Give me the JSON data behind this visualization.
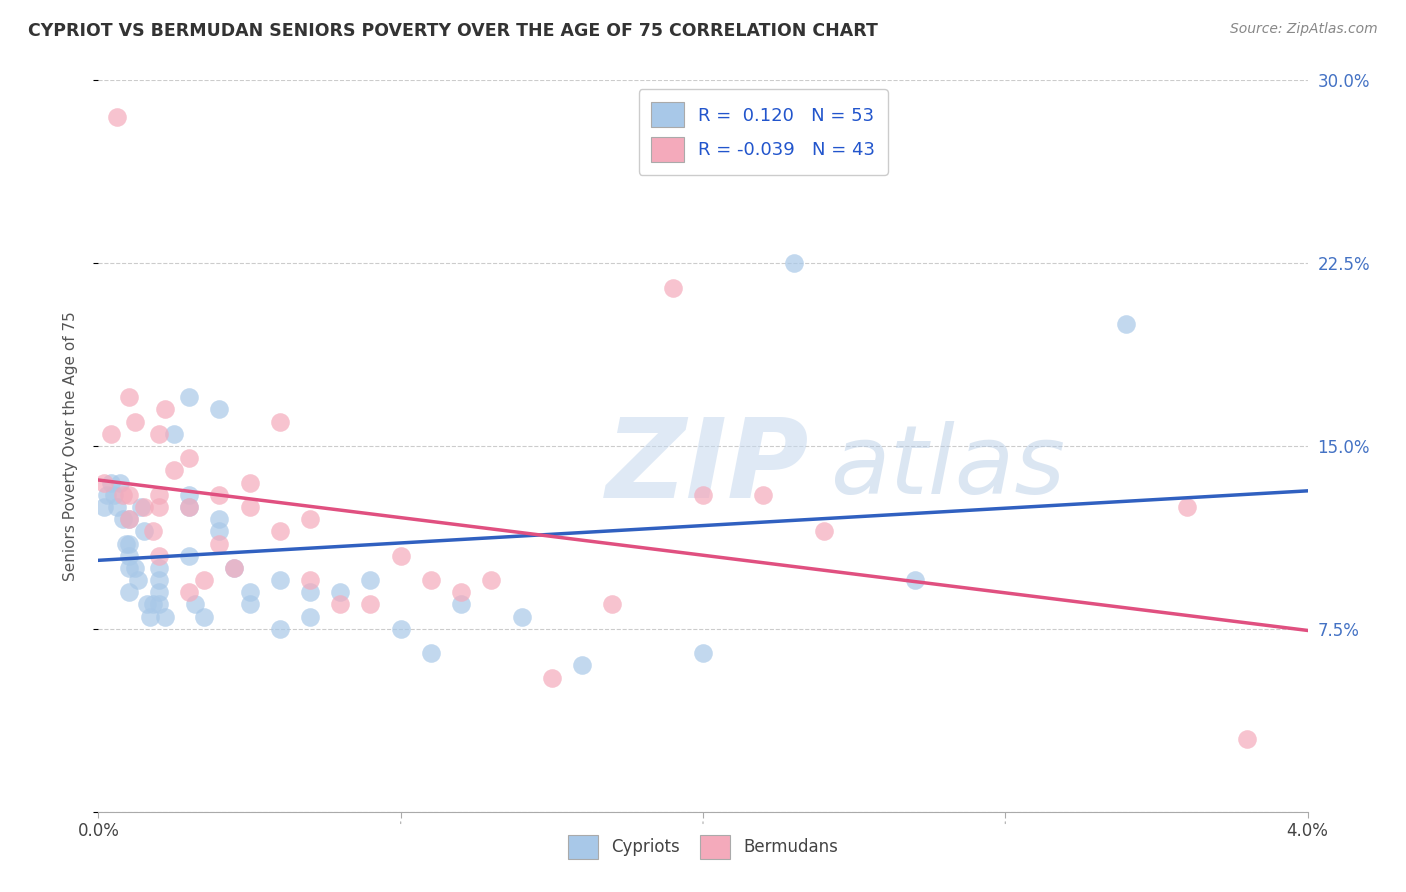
{
  "title": "CYPRIOT VS BERMUDAN SENIORS POVERTY OVER THE AGE OF 75 CORRELATION CHART",
  "source": "Source: ZipAtlas.com",
  "ylabel": "Seniors Poverty Over the Age of 75",
  "x_min": 0.0,
  "x_max": 0.04,
  "y_min": 0.0,
  "y_max": 0.3,
  "y_ticks": [
    0.0,
    0.075,
    0.15,
    0.225,
    0.3
  ],
  "y_tick_labels_right": [
    "",
    "7.5%",
    "15.0%",
    "22.5%",
    "30.0%"
  ],
  "cypriot_color": "#A8C8E8",
  "bermudan_color": "#F4AABB",
  "cypriot_line_color": "#3060C0",
  "bermudan_line_color": "#E05080",
  "cypriot_R": 0.12,
  "cypriot_N": 53,
  "bermudan_R": -0.039,
  "bermudan_N": 43,
  "cypriot_x": [
    0.0002,
    0.0003,
    0.0004,
    0.0005,
    0.0006,
    0.0007,
    0.0008,
    0.0009,
    0.001,
    0.001,
    0.001,
    0.001,
    0.001,
    0.0012,
    0.0013,
    0.0014,
    0.0015,
    0.0016,
    0.0017,
    0.0018,
    0.002,
    0.002,
    0.002,
    0.002,
    0.0022,
    0.0025,
    0.003,
    0.003,
    0.003,
    0.003,
    0.0032,
    0.0035,
    0.004,
    0.004,
    0.004,
    0.0045,
    0.005,
    0.005,
    0.006,
    0.006,
    0.007,
    0.007,
    0.008,
    0.009,
    0.01,
    0.011,
    0.012,
    0.014,
    0.016,
    0.02,
    0.023,
    0.027,
    0.034
  ],
  "cypriot_y": [
    0.125,
    0.13,
    0.135,
    0.13,
    0.125,
    0.135,
    0.12,
    0.11,
    0.12,
    0.11,
    0.1,
    0.09,
    0.105,
    0.1,
    0.095,
    0.125,
    0.115,
    0.085,
    0.08,
    0.085,
    0.095,
    0.1,
    0.085,
    0.09,
    0.08,
    0.155,
    0.13,
    0.125,
    0.105,
    0.17,
    0.085,
    0.08,
    0.12,
    0.115,
    0.165,
    0.1,
    0.09,
    0.085,
    0.095,
    0.075,
    0.09,
    0.08,
    0.09,
    0.095,
    0.075,
    0.065,
    0.085,
    0.08,
    0.06,
    0.065,
    0.225,
    0.095,
    0.2
  ],
  "bermudan_x": [
    0.0002,
    0.0004,
    0.0006,
    0.0008,
    0.001,
    0.001,
    0.001,
    0.0012,
    0.0015,
    0.0018,
    0.002,
    0.002,
    0.002,
    0.002,
    0.0022,
    0.0025,
    0.003,
    0.003,
    0.003,
    0.0035,
    0.004,
    0.004,
    0.0045,
    0.005,
    0.005,
    0.006,
    0.006,
    0.007,
    0.007,
    0.008,
    0.009,
    0.01,
    0.011,
    0.012,
    0.013,
    0.015,
    0.017,
    0.019,
    0.02,
    0.022,
    0.024,
    0.036,
    0.038
  ],
  "bermudan_y": [
    0.135,
    0.155,
    0.285,
    0.13,
    0.17,
    0.13,
    0.12,
    0.16,
    0.125,
    0.115,
    0.13,
    0.155,
    0.125,
    0.105,
    0.165,
    0.14,
    0.145,
    0.125,
    0.09,
    0.095,
    0.13,
    0.11,
    0.1,
    0.135,
    0.125,
    0.16,
    0.115,
    0.095,
    0.12,
    0.085,
    0.085,
    0.105,
    0.095,
    0.09,
    0.095,
    0.055,
    0.085,
    0.215,
    0.13,
    0.13,
    0.115,
    0.125,
    0.03
  ]
}
